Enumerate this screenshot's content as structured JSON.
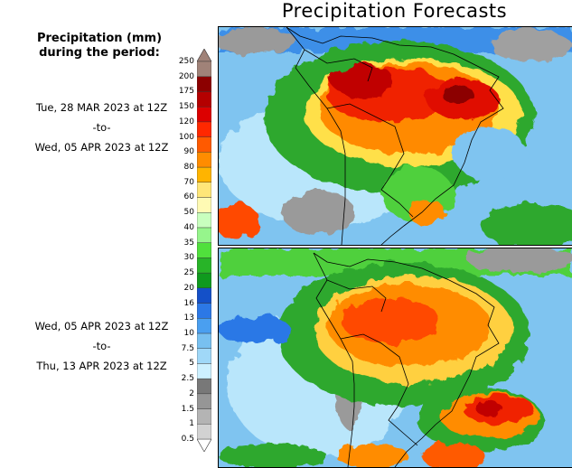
{
  "title": "Precipitation Forecasts",
  "units_label": "Precipitation (mm)\nduring the period:",
  "periods": [
    {
      "start": "Tue, 28 MAR 2023 at 12Z",
      "sep": "-to-",
      "end": "Wed, 05 APR 2023 at 12Z"
    },
    {
      "start": "Wed, 05 APR 2023 at 12Z",
      "sep": "-to-",
      "end": "Thu, 13 APR 2023 at 12Z"
    }
  ],
  "legend": {
    "levels": [
      "0.5",
      "1",
      "1.5",
      "2",
      "2.5",
      "5",
      "7.5",
      "10",
      "13",
      "16",
      "20",
      "25",
      "30",
      "35",
      "40",
      "50",
      "60",
      "70",
      "80",
      "90",
      "100",
      "120",
      "150",
      "175",
      "200",
      "250"
    ],
    "colors": [
      "#ffffff",
      "#d2d2d2",
      "#b4b4b4",
      "#969696",
      "#787878",
      "#cdf0ff",
      "#a0d8f8",
      "#78c0f0",
      "#4a9ff0",
      "#2c78e6",
      "#1450c8",
      "#0f9a1e",
      "#28b428",
      "#50e03c",
      "#96f58c",
      "#c8ffbe",
      "#fffab4",
      "#ffe678",
      "#ffb400",
      "#ff8c00",
      "#ff5a00",
      "#ff2800",
      "#dc0000",
      "#b40000",
      "#8c0000",
      "#a08278"
    ]
  }
}
